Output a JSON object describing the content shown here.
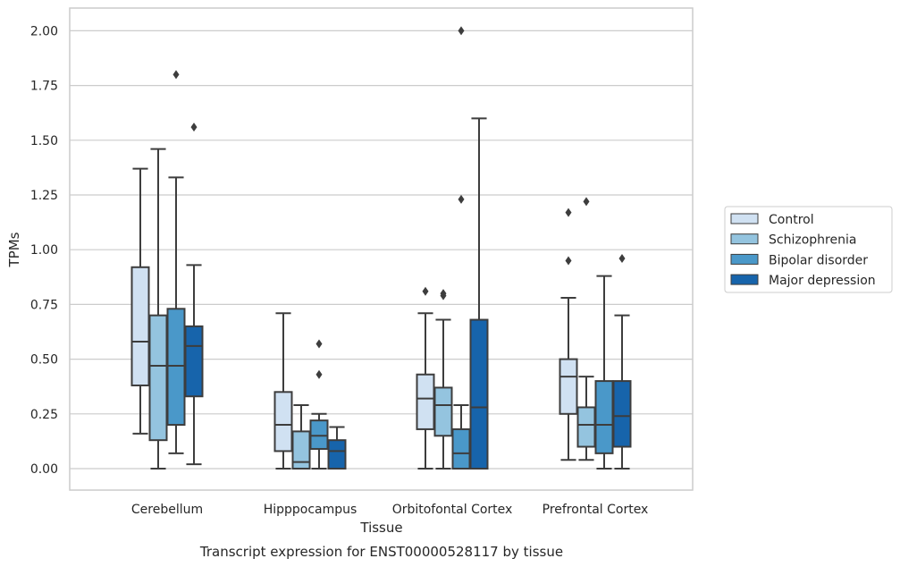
{
  "chart_data": {
    "type": "boxplot",
    "caption": "Transcript expression for ENST00000528117 by tissue",
    "xlabel": "Tissue",
    "ylabel": "TPMs",
    "ylim": [
      -0.1,
      2.1
    ],
    "yticks": [
      "0.00",
      "0.25",
      "0.50",
      "0.75",
      "1.00",
      "1.25",
      "1.50",
      "1.75",
      "2.00"
    ],
    "grid": true,
    "legend_position": "right",
    "categories": [
      "Cerebellum",
      "Hipppocampus",
      "Orbitofontal Cortex",
      "Prefrontal Cortex"
    ],
    "series": [
      {
        "name": "Control",
        "color": "#d0e1f2",
        "boxes": [
          {
            "whislo": 0.16,
            "q1": 0.38,
            "med": 0.58,
            "q3": 0.92,
            "whishi": 1.37,
            "fliers": []
          },
          {
            "whislo": 0.0,
            "q1": 0.08,
            "med": 0.2,
            "q3": 0.35,
            "whishi": 0.71,
            "fliers": []
          },
          {
            "whislo": 0.0,
            "q1": 0.18,
            "med": 0.32,
            "q3": 0.43,
            "whishi": 0.71,
            "fliers": [
              0.81
            ]
          },
          {
            "whislo": 0.04,
            "q1": 0.25,
            "med": 0.42,
            "q3": 0.5,
            "whishi": 0.78,
            "fliers": [
              0.95,
              1.17
            ]
          }
        ]
      },
      {
        "name": "Schizophrenia",
        "color": "#94c4df",
        "boxes": [
          {
            "whislo": 0.0,
            "q1": 0.13,
            "med": 0.47,
            "q3": 0.7,
            "whishi": 1.46,
            "fliers": []
          },
          {
            "whislo": 0.0,
            "q1": 0.0,
            "med": 0.03,
            "q3": 0.17,
            "whishi": 0.29,
            "fliers": []
          },
          {
            "whislo": 0.0,
            "q1": 0.15,
            "med": 0.29,
            "q3": 0.37,
            "whishi": 0.68,
            "fliers": [
              0.79,
              0.8
            ]
          },
          {
            "whislo": 0.04,
            "q1": 0.1,
            "med": 0.2,
            "q3": 0.28,
            "whishi": 0.42,
            "fliers": [
              1.22
            ]
          }
        ]
      },
      {
        "name": "Bipolar disorder",
        "color": "#4a98c9",
        "boxes": [
          {
            "whislo": 0.07,
            "q1": 0.2,
            "med": 0.47,
            "q3": 0.73,
            "whishi": 1.33,
            "fliers": [
              1.8
            ]
          },
          {
            "whislo": 0.0,
            "q1": 0.09,
            "med": 0.15,
            "q3": 0.22,
            "whishi": 0.25,
            "fliers": [
              0.43,
              0.57
            ]
          },
          {
            "whislo": 0.0,
            "q1": 0.0,
            "med": 0.07,
            "q3": 0.18,
            "whishi": 0.29,
            "fliers": [
              1.23,
              2.0
            ]
          },
          {
            "whislo": 0.0,
            "q1": 0.07,
            "med": 0.2,
            "q3": 0.4,
            "whishi": 0.88,
            "fliers": []
          }
        ]
      },
      {
        "name": "Major depression",
        "color": "#1764ab",
        "boxes": [
          {
            "whislo": 0.02,
            "q1": 0.33,
            "med": 0.56,
            "q3": 0.65,
            "whishi": 0.93,
            "fliers": [
              1.56
            ]
          },
          {
            "whislo": 0.0,
            "q1": 0.0,
            "med": 0.08,
            "q3": 0.13,
            "whishi": 0.19,
            "fliers": []
          },
          {
            "whislo": 0.0,
            "q1": 0.0,
            "med": 0.28,
            "q3": 0.68,
            "whishi": 1.6,
            "fliers": []
          },
          {
            "whislo": 0.0,
            "q1": 0.1,
            "med": 0.24,
            "q3": 0.4,
            "whishi": 0.7,
            "fliers": [
              0.96
            ]
          }
        ]
      }
    ]
  }
}
